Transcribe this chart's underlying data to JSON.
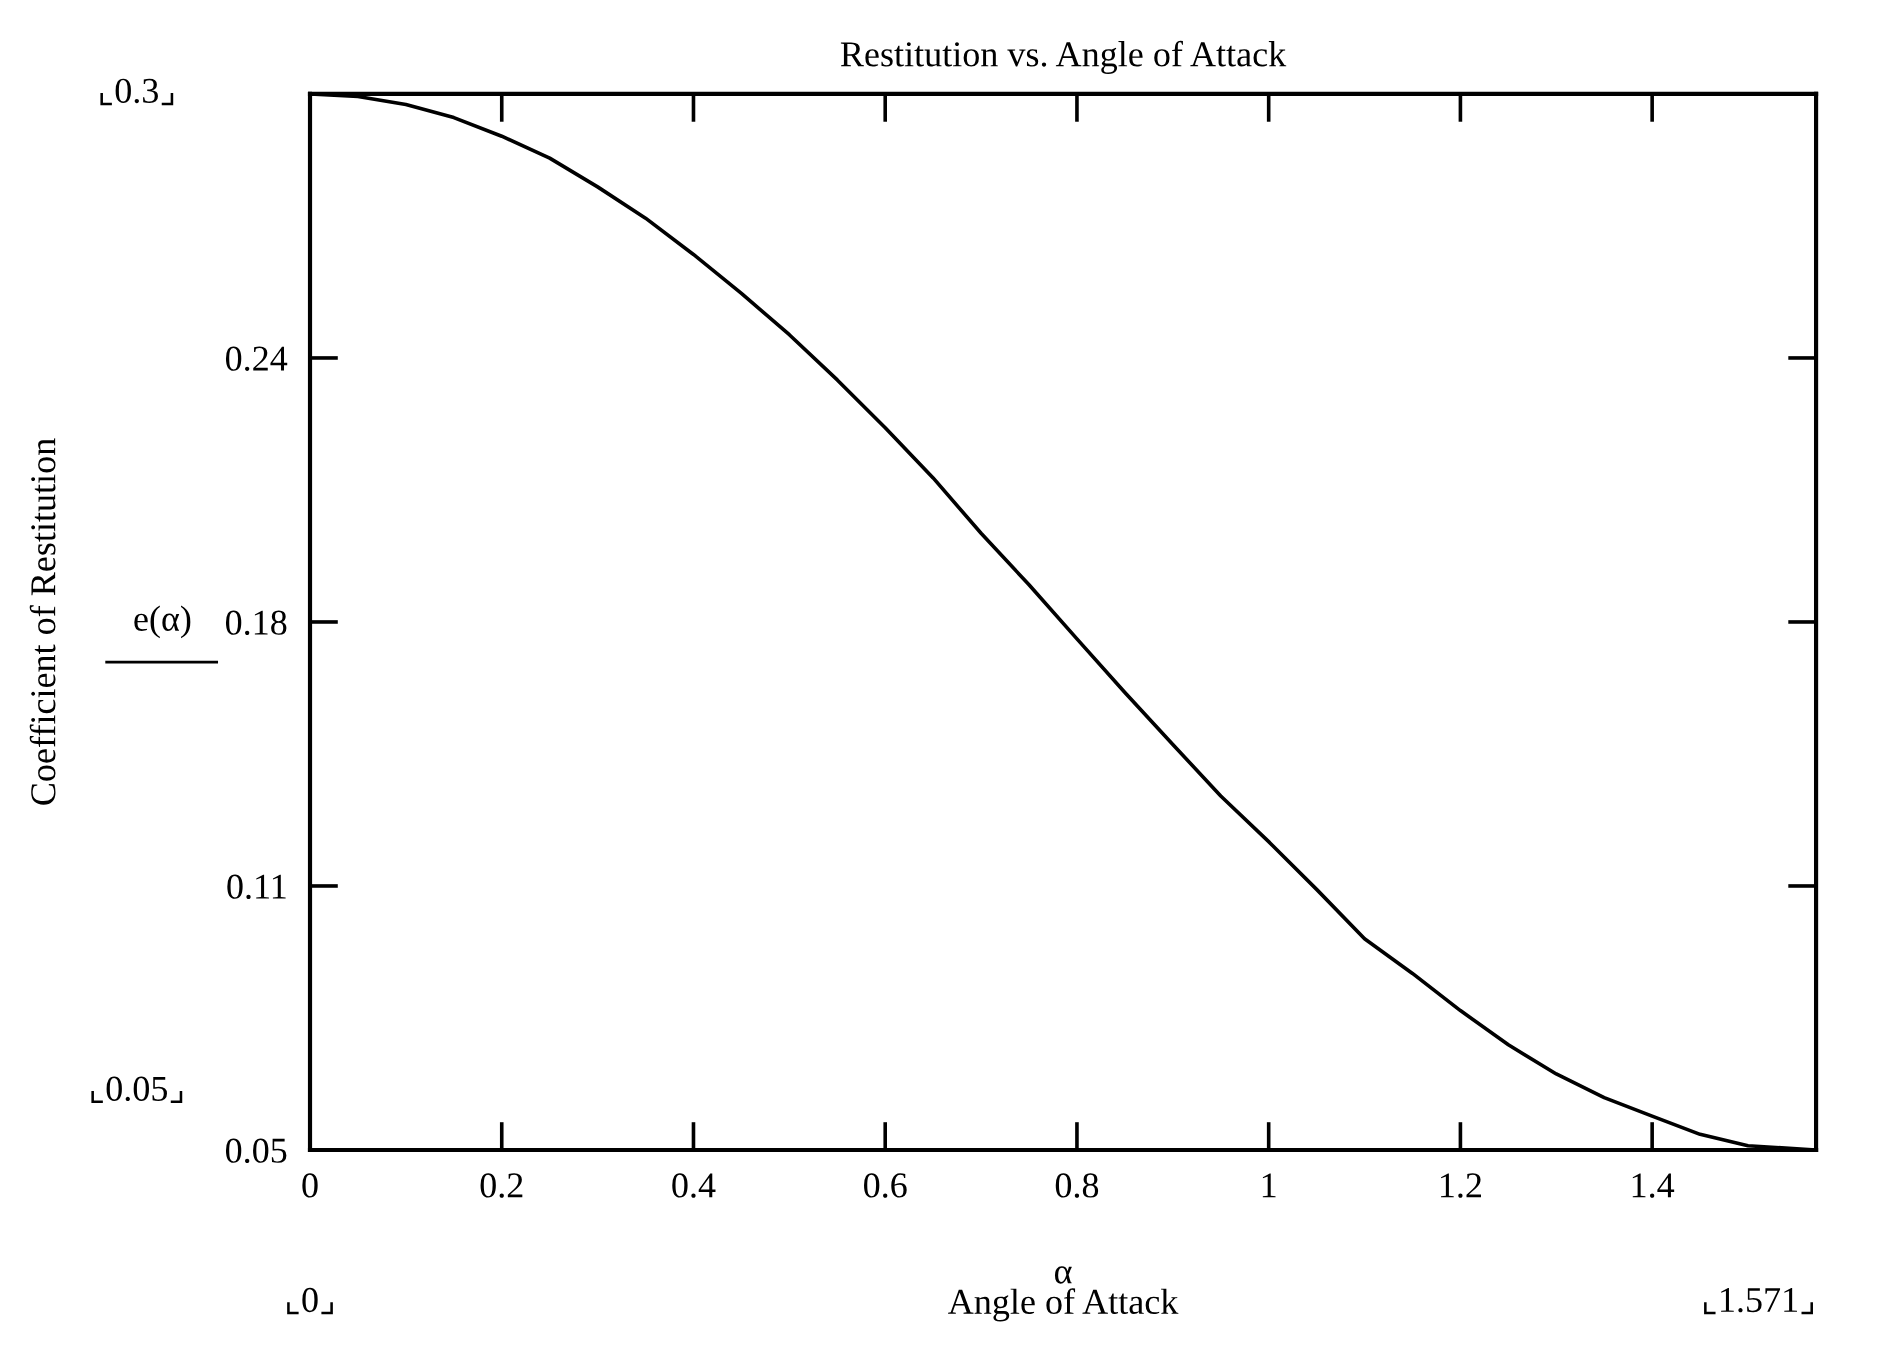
{
  "chart_data": {
    "type": "line",
    "title": "Restitution vs. Angle of Attack",
    "xlabel": "Angle of Attack",
    "annotations": [
      "α",
      "e(α)",
      "⌞0.3⌟",
      "⌞0.05⌟",
      "⌞0⌟",
      "⌞1.571⌟",
      "Coefficient of Restitution"
    ],
    "x": [
      0,
      0.05,
      0.1,
      0.15,
      0.2,
      0.25,
      0.3,
      0.35,
      0.4,
      0.45,
      0.5,
      0.55,
      0.6,
      0.65,
      0.7,
      0.75,
      0.8,
      0.85,
      0.9,
      0.95,
      1.0,
      1.05,
      1.1,
      1.15,
      1.2,
      1.25,
      1.3,
      1.35,
      1.4,
      1.45,
      1.5,
      1.571
    ],
    "series": [
      {
        "color": "#000000",
        "values": [
          0.3,
          0.2994,
          0.2975,
          0.2944,
          0.29,
          0.2848,
          0.278,
          0.2706,
          0.262,
          0.2528,
          0.243,
          0.2323,
          0.221,
          0.2091,
          0.196,
          0.1838,
          0.171,
          0.1583,
          0.146,
          0.1338,
          0.123,
          0.1117,
          0.1,
          0.0918,
          0.083,
          0.0749,
          0.068,
          0.0624,
          0.058,
          0.0537,
          0.051,
          0.05
        ]
      }
    ],
    "xlim": [
      0,
      1.571
    ],
    "ylim": [
      0.05,
      0.3
    ],
    "xticks": [
      0,
      0.2,
      0.4,
      0.6,
      0.8,
      1,
      1.2,
      1.4
    ],
    "yticks": [
      0.05,
      {
        "value": 0.1125,
        "label": "0.11"
      },
      {
        "value": 0.175,
        "label": "0.18"
      },
      {
        "value": 0.2375,
        "label": "0.24"
      },
      {
        "value": 0.3,
        "label": null
      }
    ],
    "grid": false,
    "legend": false,
    "marker": "none",
    "line_style": "solid"
  }
}
